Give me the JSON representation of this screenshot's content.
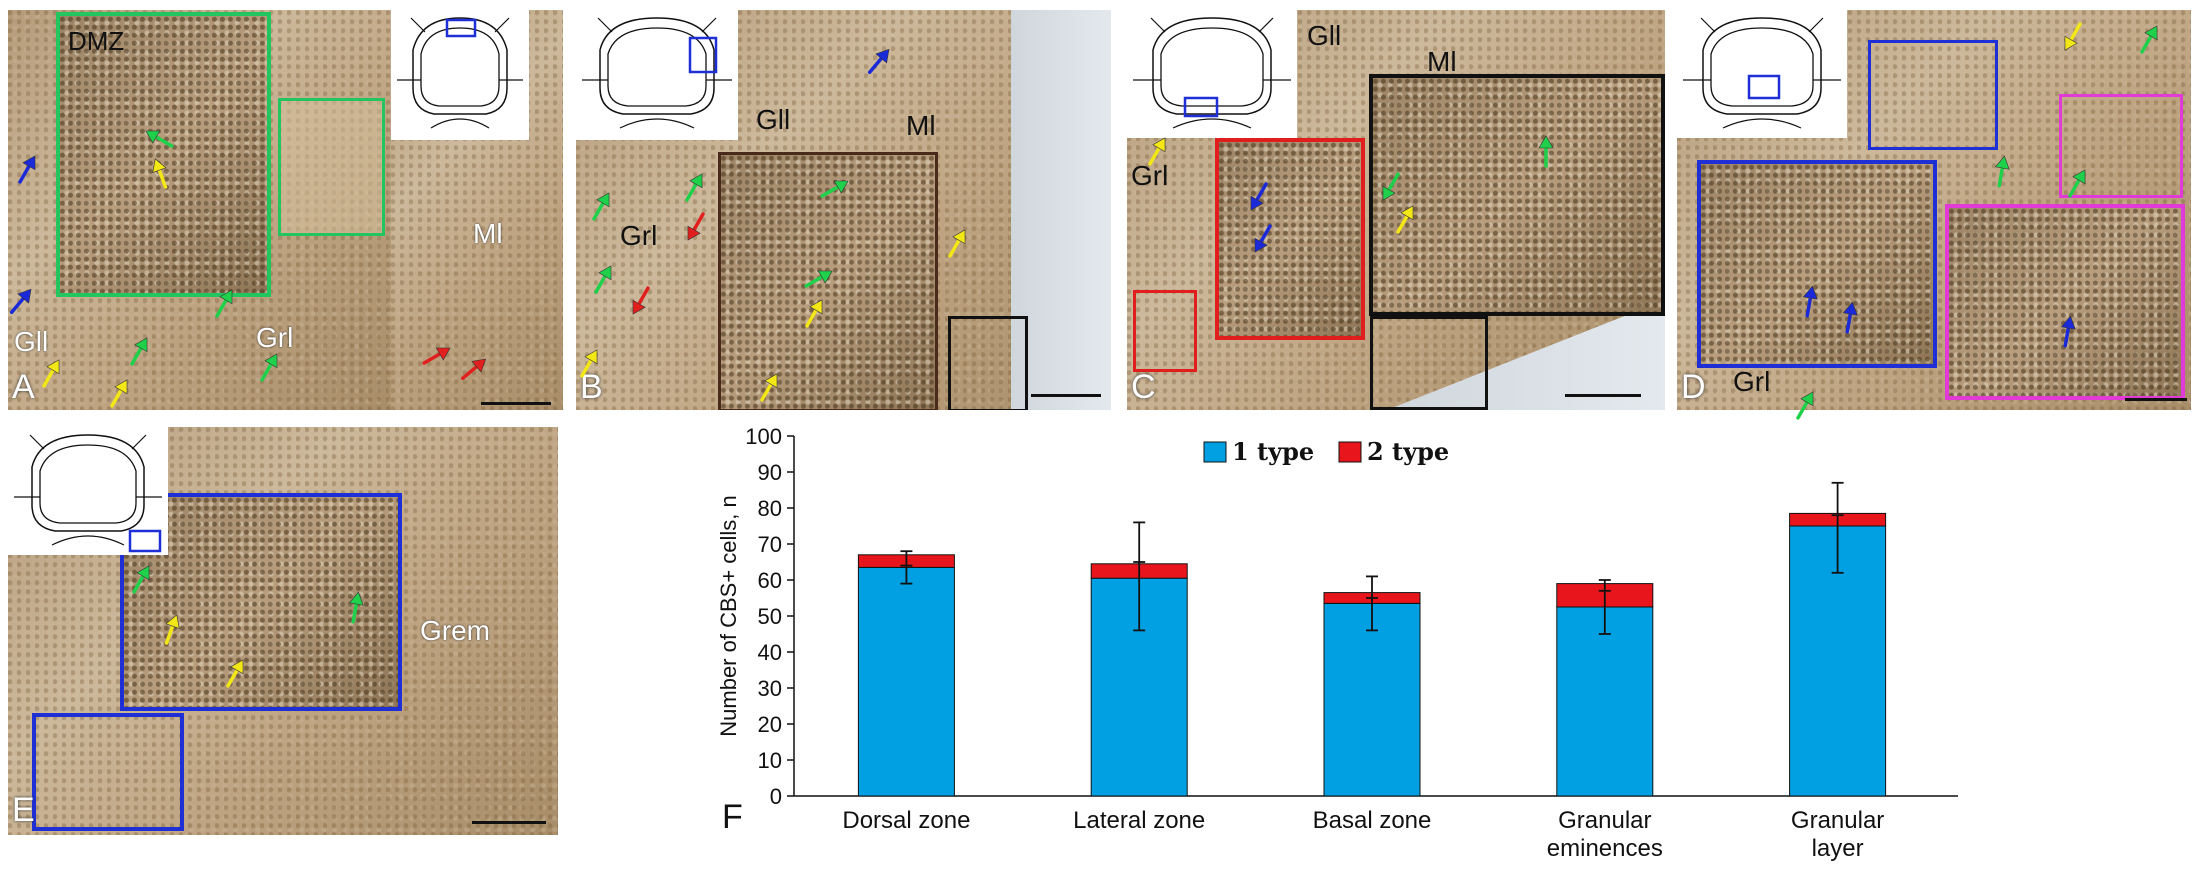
{
  "panels": {
    "A": {
      "letter": "A",
      "labels": {
        "dmz": "DMZ",
        "ml": "Ml",
        "gll": "Gll",
        "grl": "Grl"
      }
    },
    "B": {
      "letter": "B",
      "labels": {
        "gll": "Gll",
        "ml": "Ml",
        "grl": "Grl"
      }
    },
    "C": {
      "letter": "C",
      "labels": {
        "gll": "Gll",
        "ml": "Ml",
        "grl": "Grl"
      }
    },
    "D": {
      "letter": "D",
      "labels": {
        "grl": "Grl"
      }
    },
    "E": {
      "letter": "E",
      "labels": {
        "grem": "Grem"
      }
    },
    "F": {
      "letter": "F"
    }
  },
  "colors": {
    "type1": "#00a0e3",
    "type2": "#e8161c",
    "green_box": "#22c55e",
    "blue_box": "#1f2fd6",
    "magenta_box": "#e23ad6",
    "red_box": "#e01e1e",
    "black_box": "#111111",
    "arrow_green": "#1fd14a",
    "arrow_yellow": "#f3e716",
    "arrow_blue": "#1b2ad9",
    "arrow_red": "#e21f1f"
  },
  "chart_data": {
    "type": "bar",
    "stacked": true,
    "categories": [
      "Dorsal zone",
      "Lateral zone",
      "Basal zone",
      "Granular eminences",
      "Granular layer"
    ],
    "series": [
      {
        "name": "1 type",
        "values": [
          63.5,
          60.5,
          53.5,
          52.5,
          75
        ],
        "color": "#00a0e3"
      },
      {
        "name": "2 type",
        "values": [
          3.5,
          4,
          3,
          6.5,
          3.5
        ],
        "color": "#e8161c"
      }
    ],
    "error_bars": [
      {
        "center": 64,
        "low": 59,
        "high": 68
      },
      {
        "center": 65,
        "low": 46,
        "high": 76
      },
      {
        "center": 55,
        "low": 46,
        "high": 61
      },
      {
        "center": 57,
        "low": 45,
        "high": 60
      },
      {
        "center": 78,
        "low": 62,
        "high": 87
      }
    ],
    "ylabel": "Number of CBS+ cells, n",
    "xlabel": "",
    "ylim": [
      0,
      100
    ],
    "yticks": [
      0,
      10,
      20,
      30,
      40,
      50,
      60,
      70,
      80,
      90,
      100
    ],
    "legend": "top-center",
    "grid": false
  }
}
